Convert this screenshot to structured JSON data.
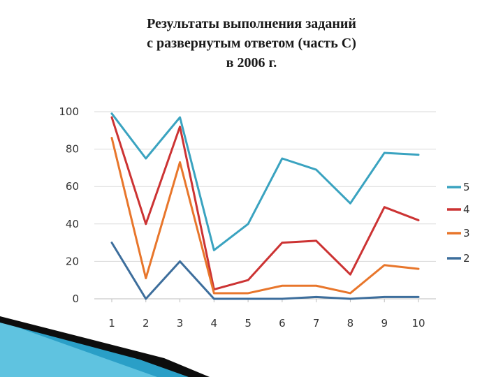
{
  "title": {
    "line1": "Результаты выполнения заданий",
    "line2": "с развернутым ответом (часть С)",
    "line3": "в 2006 г."
  },
  "chart_data": {
    "type": "line",
    "title": "Результаты выполнения заданий с развернутым ответом (часть С) в 2006 г.",
    "categories": [
      "1",
      "2",
      "3",
      "4",
      "5",
      "6",
      "7",
      "8",
      "9",
      "10"
    ],
    "ylim": [
      0,
      100
    ],
    "yticks": [
      0,
      20,
      40,
      60,
      80,
      100
    ],
    "grid": true,
    "legend": "right",
    "series": [
      {
        "name": "5",
        "color": "#3aa3c0",
        "values": [
          99,
          75,
          97,
          26,
          40,
          75,
          69,
          51,
          78,
          77
        ]
      },
      {
        "name": "4",
        "color": "#cc3333",
        "values": [
          97,
          40,
          92,
          5,
          10,
          30,
          31,
          13,
          49,
          42
        ]
      },
      {
        "name": "3",
        "color": "#e8762b",
        "values": [
          86,
          11,
          73,
          3,
          3,
          7,
          7,
          3,
          18,
          16
        ]
      },
      {
        "name": "2",
        "color": "#3d6e9c",
        "values": [
          30,
          0,
          20,
          0,
          0,
          0,
          1,
          0,
          1,
          1
        ]
      }
    ]
  },
  "decoration": {
    "accent": "#1f8fb5",
    "dark": "#0d0d0d"
  }
}
